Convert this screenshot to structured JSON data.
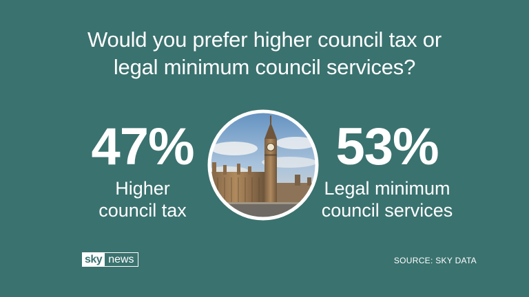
{
  "chart_data": {
    "type": "table",
    "title": "Would you prefer higher council tax or legal minimum council services?",
    "categories": [
      "Higher council tax",
      "Legal minimum council services"
    ],
    "values": [
      47,
      53
    ],
    "unit": "%"
  },
  "title_lines": [
    "Would you prefer higher council tax or",
    "legal minimum council services?"
  ],
  "stats": [
    {
      "value": "47%",
      "label_lines": [
        "Higher",
        "council tax"
      ]
    },
    {
      "value": "53%",
      "label_lines": [
        "Legal minimum",
        "council services"
      ]
    }
  ],
  "logo": {
    "sky": "sky",
    "news": "news"
  },
  "source": "SOURCE: SKY DATA",
  "colors": {
    "background": "#3a726f",
    "text": "#ffffff"
  },
  "photo": {
    "icon": "westminster-big-ben-photo"
  }
}
